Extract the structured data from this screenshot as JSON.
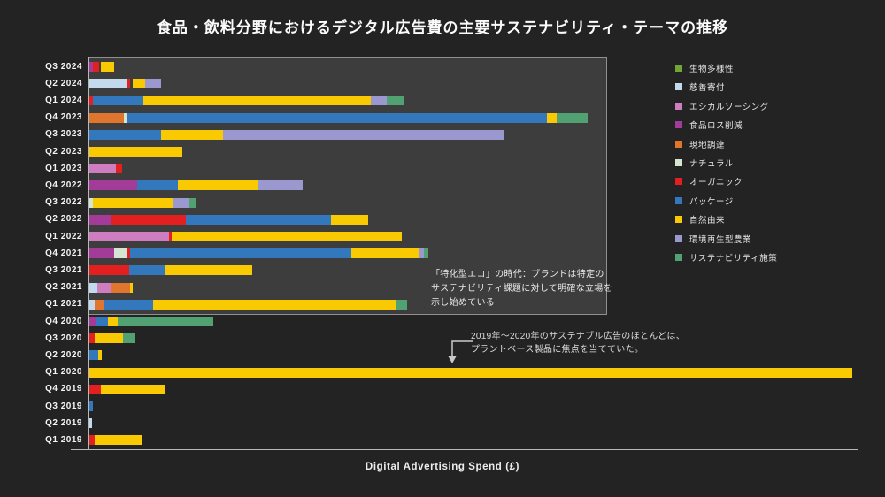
{
  "chart_data": {
    "type": "bar",
    "stacked": true,
    "orientation": "horizontal",
    "title": "食品・飲料分野におけるデジタル広告費の主要サステナビリティ・テーマの推移",
    "xlabel": "Digital Advertising Spend (£)",
    "ylabel": "",
    "x_axis_ticks": "none (unlabeled spend axis)",
    "value_units": "relative spend units read from axis (0 = axis origin)",
    "xlim": [
      0,
      870
    ],
    "legend_position": "right",
    "themes": {
      "biodiversity": {
        "label": "生物多様性",
        "color": "#71A636"
      },
      "charity": {
        "label": "慈善寄付",
        "color": "#C3D9ED"
      },
      "ethical": {
        "label": "エシカルソーシング",
        "color": "#CE7EC0"
      },
      "food_loss": {
        "label": "食品ロス削減",
        "color": "#A23C98"
      },
      "local": {
        "label": "現地調達",
        "color": "#E0762E"
      },
      "natural": {
        "label": "ナチュラル",
        "color": "#D6E4D2"
      },
      "organic": {
        "label": "オーガニック",
        "color": "#E31F1F"
      },
      "packaging": {
        "label": "パッケージ",
        "color": "#3377BC"
      },
      "nature_derived": {
        "label": "自然由来",
        "color": "#F9C901"
      },
      "regen_ag": {
        "label": "環境再生型農業",
        "color": "#9B97CF"
      },
      "sustainability": {
        "label": "サステナビリティ施策",
        "color": "#52A172"
      }
    },
    "legend_order": [
      "biodiversity",
      "charity",
      "ethical",
      "food_loss",
      "local",
      "natural",
      "organic",
      "packaging",
      "nature_derived",
      "regen_ag",
      "sustainability"
    ],
    "rows": [
      {
        "label": "Q3 2024",
        "segments": [
          {
            "theme": "food_loss",
            "start": 0,
            "end": 4
          },
          {
            "theme": "organic",
            "start": 4,
            "end": 11
          },
          {
            "theme": "nature_derived",
            "start": 13,
            "end": 28
          }
        ]
      },
      {
        "label": "Q2 2024",
        "segments": [
          {
            "theme": "charity",
            "start": 0,
            "end": 43
          },
          {
            "theme": "organic",
            "start": 43,
            "end": 46
          },
          {
            "theme": "nature_derived",
            "start": 49,
            "end": 63
          },
          {
            "theme": "regen_ag",
            "start": 63,
            "end": 81
          }
        ]
      },
      {
        "label": "Q1 2024",
        "segments": [
          {
            "theme": "organic",
            "start": 0,
            "end": 4
          },
          {
            "theme": "packaging",
            "start": 4,
            "end": 61
          },
          {
            "theme": "nature_derived",
            "start": 61,
            "end": 318
          },
          {
            "theme": "regen_ag",
            "start": 318,
            "end": 336
          },
          {
            "theme": "sustainability",
            "start": 336,
            "end": 356
          }
        ]
      },
      {
        "label": "Q4 2023",
        "segments": [
          {
            "theme": "local",
            "start": 0,
            "end": 39
          },
          {
            "theme": "natural",
            "start": 39,
            "end": 43
          },
          {
            "theme": "packaging",
            "start": 43,
            "end": 517
          },
          {
            "theme": "nature_derived",
            "start": 517,
            "end": 528
          },
          {
            "theme": "sustainability",
            "start": 528,
            "end": 563
          }
        ]
      },
      {
        "label": "Q3 2023",
        "segments": [
          {
            "theme": "packaging",
            "start": 0,
            "end": 81
          },
          {
            "theme": "nature_derived",
            "start": 81,
            "end": 151
          },
          {
            "theme": "regen_ag",
            "start": 151,
            "end": 469
          }
        ]
      },
      {
        "label": "Q2 2023",
        "segments": [
          {
            "theme": "nature_derived",
            "start": 0,
            "end": 105
          }
        ]
      },
      {
        "label": "Q1 2023",
        "segments": [
          {
            "theme": "ethical",
            "start": 0,
            "end": 30
          },
          {
            "theme": "organic",
            "start": 30,
            "end": 37
          }
        ]
      },
      {
        "label": "Q4 2022",
        "segments": [
          {
            "theme": "food_loss",
            "start": 0,
            "end": 54
          },
          {
            "theme": "packaging",
            "start": 54,
            "end": 100
          },
          {
            "theme": "nature_derived",
            "start": 100,
            "end": 191
          },
          {
            "theme": "regen_ag",
            "start": 191,
            "end": 241
          }
        ]
      },
      {
        "label": "Q3 2022",
        "segments": [
          {
            "theme": "natural",
            "start": 0,
            "end": 4
          },
          {
            "theme": "nature_derived",
            "start": 4,
            "end": 94
          },
          {
            "theme": "regen_ag",
            "start": 94,
            "end": 113
          },
          {
            "theme": "sustainability",
            "start": 113,
            "end": 121
          }
        ]
      },
      {
        "label": "Q2 2022",
        "segments": [
          {
            "theme": "food_loss",
            "start": 0,
            "end": 24
          },
          {
            "theme": "organic",
            "start": 24,
            "end": 109
          },
          {
            "theme": "packaging",
            "start": 109,
            "end": 273
          },
          {
            "theme": "nature_derived",
            "start": 273,
            "end": 315
          }
        ]
      },
      {
        "label": "Q1 2022",
        "segments": [
          {
            "theme": "ethical",
            "start": 0,
            "end": 90
          },
          {
            "theme": "organic",
            "start": 90,
            "end": 93
          },
          {
            "theme": "nature_derived",
            "start": 93,
            "end": 353
          }
        ]
      },
      {
        "label": "Q4 2021",
        "segments": [
          {
            "theme": "food_loss",
            "start": 0,
            "end": 28
          },
          {
            "theme": "natural",
            "start": 28,
            "end": 42
          },
          {
            "theme": "organic",
            "start": 42,
            "end": 46
          },
          {
            "theme": "packaging",
            "start": 46,
            "end": 296
          },
          {
            "theme": "nature_derived",
            "start": 296,
            "end": 373
          },
          {
            "theme": "regen_ag",
            "start": 373,
            "end": 378
          },
          {
            "theme": "sustainability",
            "start": 378,
            "end": 383
          }
        ]
      },
      {
        "label": "Q3 2021",
        "segments": [
          {
            "theme": "organic",
            "start": 0,
            "end": 45
          },
          {
            "theme": "packaging",
            "start": 45,
            "end": 86
          },
          {
            "theme": "nature_derived",
            "start": 86,
            "end": 184
          }
        ]
      },
      {
        "label": "Q2 2021",
        "segments": [
          {
            "theme": "charity",
            "start": 0,
            "end": 9
          },
          {
            "theme": "ethical",
            "start": 9,
            "end": 24
          },
          {
            "theme": "local",
            "start": 24,
            "end": 46
          },
          {
            "theme": "nature_derived",
            "start": 46,
            "end": 49
          }
        ]
      },
      {
        "label": "Q1 2021",
        "segments": [
          {
            "theme": "charity",
            "start": 0,
            "end": 6
          },
          {
            "theme": "local",
            "start": 6,
            "end": 16
          },
          {
            "theme": "packaging",
            "start": 16,
            "end": 72
          },
          {
            "theme": "nature_derived",
            "start": 72,
            "end": 347
          },
          {
            "theme": "sustainability",
            "start": 347,
            "end": 359
          }
        ]
      },
      {
        "label": "Q4 2020",
        "segments": [
          {
            "theme": "food_loss",
            "start": 0,
            "end": 8
          },
          {
            "theme": "packaging",
            "start": 8,
            "end": 21
          },
          {
            "theme": "nature_derived",
            "start": 21,
            "end": 32
          },
          {
            "theme": "sustainability",
            "start": 32,
            "end": 140
          }
        ]
      },
      {
        "label": "Q3 2020",
        "segments": [
          {
            "theme": "organic",
            "start": 0,
            "end": 6
          },
          {
            "theme": "nature_derived",
            "start": 6,
            "end": 38
          },
          {
            "theme": "sustainability",
            "start": 38,
            "end": 51
          }
        ]
      },
      {
        "label": "Q2 2020",
        "segments": [
          {
            "theme": "packaging",
            "start": 0,
            "end": 10
          },
          {
            "theme": "nature_derived",
            "start": 10,
            "end": 14
          }
        ]
      },
      {
        "label": "Q1 2020",
        "segments": [
          {
            "theme": "nature_derived",
            "start": 0,
            "end": 862
          }
        ]
      },
      {
        "label": "Q4 2019",
        "segments": [
          {
            "theme": "organic",
            "start": 0,
            "end": 13
          },
          {
            "theme": "nature_derived",
            "start": 13,
            "end": 85
          }
        ]
      },
      {
        "label": "Q3 2019",
        "segments": [
          {
            "theme": "packaging",
            "start": 0,
            "end": 4
          }
        ]
      },
      {
        "label": "Q2 2019",
        "segments": [
          {
            "theme": "charity",
            "start": 0,
            "end": 3
          }
        ]
      },
      {
        "label": "Q1 2019",
        "segments": [
          {
            "theme": "organic",
            "start": 0,
            "end": 6
          },
          {
            "theme": "nature_derived",
            "start": 6,
            "end": 60
          }
        ]
      }
    ],
    "era_highlight_box": {
      "covers_rows": "Q1 2021 〜 Q3 2024",
      "fill": "#3D3D3D",
      "border": "#8F8F8F"
    },
    "annotations": [
      {
        "id": "era-note",
        "lines": [
          "「特化型エコ」の時代：ブランドは特定の",
          "サステナビリティ課題に対して明確な立場を",
          "示し始めている"
        ]
      },
      {
        "id": "plant-based-note",
        "lines": [
          "2019年〜2020年のサステナブル広告のほとんどは、",
          "プラントベース製品に焦点を当てていた。"
        ],
        "arrow": "elbow arrow pointing down to Q1 2020 bar"
      }
    ],
    "colors": {
      "page_background": "#232323",
      "panel_background": "#3D3D3D",
      "axis_line": "#B8B8B8",
      "text": "#F4F4F4"
    }
  }
}
